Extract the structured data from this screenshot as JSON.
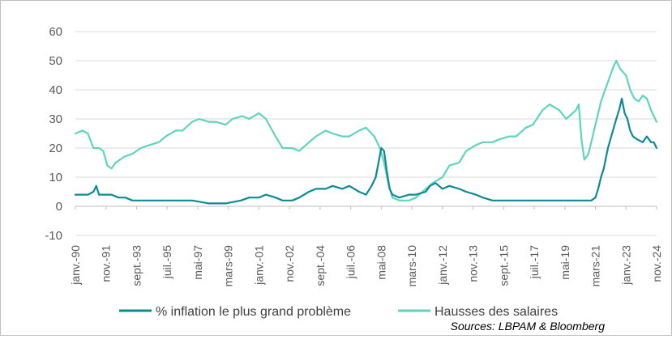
{
  "chart_data": {
    "type": "line",
    "y_ticks": [
      "60",
      "50",
      "40",
      "30",
      "20",
      "10",
      "0",
      "-10"
    ],
    "ylim": [
      -10,
      60
    ],
    "x_labels": [
      "janv.-90",
      "nov.-91",
      "sept.-93",
      "juil.-95",
      "mai-97",
      "mars-99",
      "janv.-01",
      "nov.-02",
      "sept.-04",
      "juil.-06",
      "mai-08",
      "mars-10",
      "janv.-12",
      "nov.-13",
      "sept.-15",
      "juil.-17",
      "mai-19",
      "mars-21",
      "janv.-23",
      "nov.-24"
    ],
    "x_range": [
      "1990-01",
      "2024-11"
    ],
    "gridlines": "horizontal",
    "legend_position": "bottom",
    "series": [
      {
        "name": "% inflation le plus grand problème",
        "color": "#0e8a96",
        "points": [
          [
            "1990-01",
            4
          ],
          [
            "1990-06",
            4
          ],
          [
            "1990-10",
            4
          ],
          [
            "1991-02",
            5
          ],
          [
            "1991-04",
            7
          ],
          [
            "1991-06",
            4
          ],
          [
            "1991-10",
            4
          ],
          [
            "1992-03",
            4
          ],
          [
            "1992-08",
            3
          ],
          [
            "1993-01",
            3
          ],
          [
            "1993-06",
            2
          ],
          [
            "1994-01",
            2
          ],
          [
            "1995-01",
            2
          ],
          [
            "1996-01",
            2
          ],
          [
            "1997-01",
            2
          ],
          [
            "1998-01",
            1
          ],
          [
            "1999-01",
            1
          ],
          [
            "1999-12",
            2
          ],
          [
            "2000-06",
            3
          ],
          [
            "2001-01",
            3
          ],
          [
            "2001-06",
            4
          ],
          [
            "2002-01",
            3
          ],
          [
            "2002-06",
            2
          ],
          [
            "2003-01",
            2
          ],
          [
            "2003-06",
            3
          ],
          [
            "2004-01",
            5
          ],
          [
            "2004-06",
            6
          ],
          [
            "2005-01",
            6
          ],
          [
            "2005-06",
            7
          ],
          [
            "2006-01",
            6
          ],
          [
            "2006-06",
            7
          ],
          [
            "2007-01",
            5
          ],
          [
            "2007-06",
            4
          ],
          [
            "2007-10",
            7
          ],
          [
            "2008-01",
            10
          ],
          [
            "2008-03",
            15
          ],
          [
            "2008-05",
            20
          ],
          [
            "2008-07",
            19
          ],
          [
            "2008-09",
            12
          ],
          [
            "2008-11",
            6
          ],
          [
            "2009-01",
            4
          ],
          [
            "2009-06",
            3
          ],
          [
            "2010-01",
            4
          ],
          [
            "2010-06",
            4
          ],
          [
            "2011-01",
            5
          ],
          [
            "2011-04",
            7
          ],
          [
            "2011-08",
            8
          ],
          [
            "2012-01",
            6
          ],
          [
            "2012-06",
            7
          ],
          [
            "2013-01",
            6
          ],
          [
            "2013-06",
            5
          ],
          [
            "2014-01",
            4
          ],
          [
            "2014-06",
            3
          ],
          [
            "2015-01",
            2
          ],
          [
            "2015-06",
            2
          ],
          [
            "2016-01",
            2
          ],
          [
            "2016-06",
            2
          ],
          [
            "2017-01",
            2
          ],
          [
            "2017-06",
            2
          ],
          [
            "2018-01",
            2
          ],
          [
            "2018-06",
            2
          ],
          [
            "2019-01",
            2
          ],
          [
            "2019-06",
            2
          ],
          [
            "2020-01",
            2
          ],
          [
            "2020-06",
            2
          ],
          [
            "2020-12",
            2
          ],
          [
            "2021-03",
            3
          ],
          [
            "2021-05",
            6
          ],
          [
            "2021-07",
            10
          ],
          [
            "2021-09",
            13
          ],
          [
            "2021-12",
            20
          ],
          [
            "2022-03",
            25
          ],
          [
            "2022-06",
            30
          ],
          [
            "2022-08",
            33
          ],
          [
            "2022-10",
            37
          ],
          [
            "2022-12",
            32
          ],
          [
            "2023-02",
            30
          ],
          [
            "2023-04",
            26
          ],
          [
            "2023-06",
            24
          ],
          [
            "2023-09",
            23
          ],
          [
            "2024-01",
            22
          ],
          [
            "2024-04",
            24
          ],
          [
            "2024-07",
            22
          ],
          [
            "2024-09",
            22
          ],
          [
            "2024-11",
            20
          ]
        ]
      },
      {
        "name": "Hausses des salaires",
        "color": "#5fd4bf",
        "points": [
          [
            "1990-01",
            25
          ],
          [
            "1990-06",
            26
          ],
          [
            "1990-10",
            25
          ],
          [
            "1991-02",
            20
          ],
          [
            "1991-06",
            20
          ],
          [
            "1991-09",
            19
          ],
          [
            "1991-12",
            14
          ],
          [
            "1992-03",
            13
          ],
          [
            "1992-06",
            15
          ],
          [
            "1992-12",
            17
          ],
          [
            "1993-06",
            18
          ],
          [
            "1993-12",
            20
          ],
          [
            "1994-06",
            21
          ],
          [
            "1995-01",
            22
          ],
          [
            "1995-06",
            24
          ],
          [
            "1996-01",
            26
          ],
          [
            "1996-06",
            26
          ],
          [
            "1997-01",
            29
          ],
          [
            "1997-06",
            30
          ],
          [
            "1998-01",
            29
          ],
          [
            "1998-06",
            29
          ],
          [
            "1999-01",
            28
          ],
          [
            "1999-06",
            30
          ],
          [
            "2000-01",
            31
          ],
          [
            "2000-06",
            30
          ],
          [
            "2001-01",
            32
          ],
          [
            "2001-06",
            30
          ],
          [
            "2002-01",
            24
          ],
          [
            "2002-06",
            20
          ],
          [
            "2003-01",
            20
          ],
          [
            "2003-06",
            19
          ],
          [
            "2004-01",
            22
          ],
          [
            "2004-06",
            24
          ],
          [
            "2005-01",
            26
          ],
          [
            "2005-06",
            25
          ],
          [
            "2006-01",
            24
          ],
          [
            "2006-06",
            24
          ],
          [
            "2007-01",
            26
          ],
          [
            "2007-06",
            27
          ],
          [
            "2007-12",
            24
          ],
          [
            "2008-04",
            20
          ],
          [
            "2008-07",
            15
          ],
          [
            "2008-10",
            8
          ],
          [
            "2009-01",
            3
          ],
          [
            "2009-06",
            2
          ],
          [
            "2010-01",
            2
          ],
          [
            "2010-06",
            3
          ],
          [
            "2011-01",
            6
          ],
          [
            "2011-06",
            8
          ],
          [
            "2012-01",
            10
          ],
          [
            "2012-06",
            14
          ],
          [
            "2013-01",
            15
          ],
          [
            "2013-06",
            19
          ],
          [
            "2014-01",
            21
          ],
          [
            "2014-06",
            22
          ],
          [
            "2015-01",
            22
          ],
          [
            "2015-06",
            23
          ],
          [
            "2016-01",
            24
          ],
          [
            "2016-06",
            24
          ],
          [
            "2017-01",
            27
          ],
          [
            "2017-06",
            28
          ],
          [
            "2018-01",
            33
          ],
          [
            "2018-06",
            35
          ],
          [
            "2019-01",
            33
          ],
          [
            "2019-06",
            30
          ],
          [
            "2020-01",
            33
          ],
          [
            "2020-03",
            35
          ],
          [
            "2020-05",
            23
          ],
          [
            "2020-07",
            16
          ],
          [
            "2020-10",
            18
          ],
          [
            "2021-01",
            24
          ],
          [
            "2021-04",
            30
          ],
          [
            "2021-07",
            36
          ],
          [
            "2021-10",
            40
          ],
          [
            "2022-01",
            44
          ],
          [
            "2022-04",
            48
          ],
          [
            "2022-06",
            50
          ],
          [
            "2022-09",
            47
          ],
          [
            "2023-01",
            45
          ],
          [
            "2023-04",
            40
          ],
          [
            "2023-07",
            37
          ],
          [
            "2023-10",
            36
          ],
          [
            "2024-01",
            38
          ],
          [
            "2024-04",
            37
          ],
          [
            "2024-07",
            33
          ],
          [
            "2024-09",
            31
          ],
          [
            "2024-11",
            29
          ]
        ]
      }
    ],
    "source": "Sources: LBPAM & Bloomberg"
  }
}
